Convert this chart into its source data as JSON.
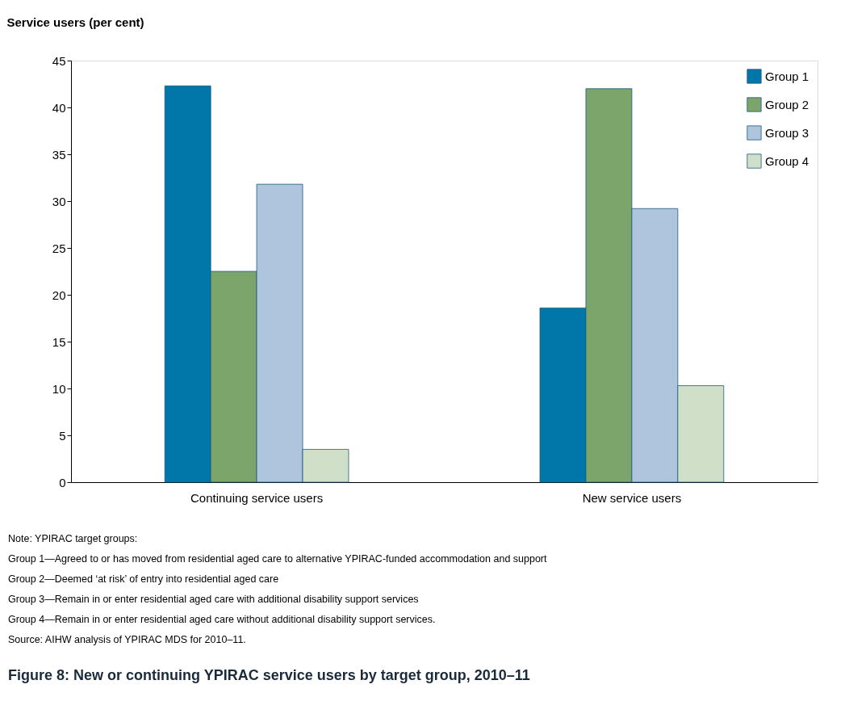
{
  "chart_data": {
    "type": "bar",
    "title": "Figure 8: New or continuing YPIRAC service users by target group, 2010–11",
    "ylabel": "Service users (per cent)",
    "categories": [
      "Continuing service users",
      "New service users"
    ],
    "series": [
      {
        "name": "Group 1",
        "color": "#0077a8",
        "values": [
          42.3,
          18.6
        ]
      },
      {
        "name": "Group 2",
        "color": "#7ba56b",
        "values": [
          22.5,
          42.0
        ]
      },
      {
        "name": "Group 3",
        "color": "#afc5de",
        "values": [
          31.8,
          29.2
        ]
      },
      {
        "name": "Group 4",
        "color": "#d0e0c8",
        "values": [
          3.5,
          10.3
        ]
      }
    ],
    "ylim": [
      0,
      45
    ],
    "yticks": [
      0,
      5,
      10,
      15,
      20,
      25,
      30,
      35,
      40,
      45
    ],
    "grid": false,
    "legend": "top right",
    "annotations": [
      "Note: YPIRAC target groups:",
      "Group 1—Agreed to or has moved from residential aged care to alternative YPIRAC-funded accommodation and support",
      "Group 2—Deemed ‘at risk’ of entry into residential aged care",
      "Group 3—Remain in or enter residential aged care with additional disability support services",
      "Group 4—Remain in or enter residential aged care without additional disability support services.",
      "Source: AIHW analysis of YPIRAC MDS for 2010–11."
    ]
  }
}
